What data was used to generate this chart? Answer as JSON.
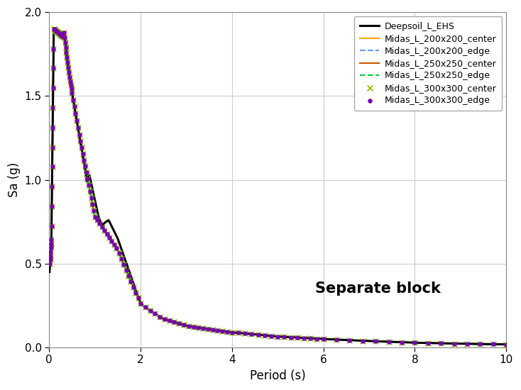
{
  "title": "",
  "xlabel": "Period (s)",
  "ylabel": "Sa (g)",
  "annotation": "Separate block",
  "xlim": [
    0,
    10
  ],
  "ylim": [
    0,
    2
  ],
  "yticks": [
    0,
    0.5,
    1.0,
    1.5,
    2.0
  ],
  "xticks": [
    0,
    2,
    4,
    6,
    8,
    10
  ],
  "legend_entries": [
    "Deepsoil_L_EHS",
    "Midas_L_200x200_center",
    "Midas_L_200x200_edge",
    "Midas_L_250x250_center",
    "Midas_L_250x250_edge",
    "Midas_L_300x300_center",
    "Midas_L_300x300_edge"
  ],
  "deepsoil_color": "#000000",
  "midas_200_center_color": "#FFA500",
  "midas_200_edge_color": "#6699FF",
  "midas_250_center_color": "#CC5500",
  "midas_250_edge_color": "#00CC44",
  "midas_300_center_color": "#88BB00",
  "midas_300_edge_color": "#7700AA",
  "grid_color": "#cccccc",
  "background_color": "#ffffff"
}
